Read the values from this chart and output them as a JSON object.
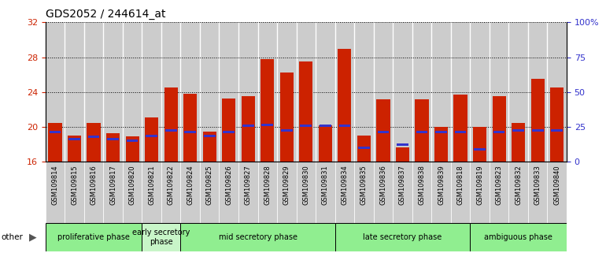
{
  "title": "GDS2052 / 244614_at",
  "samples": [
    "GSM109814",
    "GSM109815",
    "GSM109816",
    "GSM109817",
    "GSM109820",
    "GSM109821",
    "GSM109822",
    "GSM109824",
    "GSM109825",
    "GSM109826",
    "GSM109827",
    "GSM109828",
    "GSM109829",
    "GSM109830",
    "GSM109831",
    "GSM109834",
    "GSM109835",
    "GSM109836",
    "GSM109837",
    "GSM109838",
    "GSM109839",
    "GSM109818",
    "GSM109819",
    "GSM109823",
    "GSM109832",
    "GSM109833",
    "GSM109840"
  ],
  "count_values": [
    20.5,
    19.0,
    20.5,
    19.3,
    18.9,
    21.1,
    24.5,
    23.8,
    19.5,
    23.3,
    23.5,
    27.8,
    26.2,
    27.5,
    20.2,
    29.0,
    19.0,
    23.2,
    17.7,
    23.2,
    20.0,
    23.7,
    20.0,
    23.5,
    20.5,
    25.5,
    24.5
  ],
  "percentile_values": [
    19.3,
    18.5,
    18.7,
    18.5,
    18.3,
    18.8,
    19.5,
    19.3,
    18.8,
    19.3,
    20.0,
    20.1,
    19.5,
    20.0,
    20.0,
    20.0,
    17.5,
    19.3,
    17.8,
    19.3,
    19.3,
    19.3,
    17.3,
    19.3,
    19.5,
    19.5,
    19.5
  ],
  "phases": [
    {
      "name": "proliferative phase",
      "color": "#90EE90",
      "start": 0,
      "end": 5
    },
    {
      "name": "early secretory\nphase",
      "color": "#c8f5c8",
      "start": 5,
      "end": 7
    },
    {
      "name": "mid secretory phase",
      "color": "#90EE90",
      "start": 7,
      "end": 15
    },
    {
      "name": "late secretory phase",
      "color": "#90EE90",
      "start": 15,
      "end": 22
    },
    {
      "name": "ambiguous phase",
      "color": "#90EE90",
      "start": 22,
      "end": 27
    }
  ],
  "bar_color": "#cc2200",
  "percentile_color": "#3333cc",
  "cell_bg": "#cccccc",
  "ylim_left": [
    16,
    32
  ],
  "ylim_right": [
    0,
    100
  ],
  "yticks_left": [
    16,
    20,
    24,
    28,
    32
  ],
  "yticks_right": [
    0,
    25,
    50,
    75,
    100
  ],
  "ytick_labels_right": [
    "0",
    "25",
    "50",
    "75",
    "100%"
  ]
}
